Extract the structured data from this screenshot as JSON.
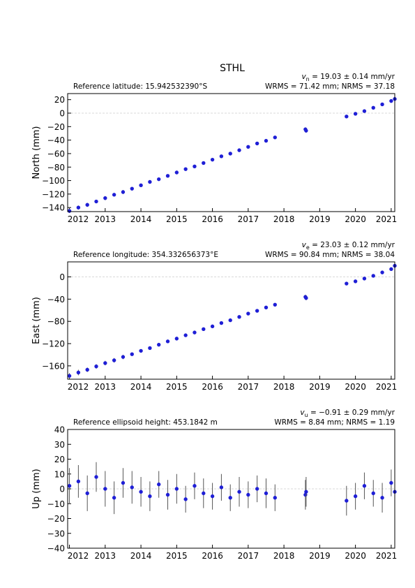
{
  "chart_data": [
    {
      "type": "scatter",
      "title": "STHL",
      "rate_symbol": "v",
      "rate_subscript": "n",
      "rate_text": " = 19.03 ± 0.14 mm/yr",
      "reference": "Reference latitude: 15.942532390°S",
      "stats": "WRMS = 71.42 mm; NRMS = 37.18",
      "y_label": "North (mm)",
      "xlim": [
        2011.95,
        2021.1
      ],
      "xticks": [
        2012,
        2013,
        2014,
        2015,
        2016,
        2017,
        2018,
        2019,
        2020,
        2021
      ],
      "ylim": [
        -146,
        29
      ],
      "yticks": [
        20,
        0,
        {
          "value": -20,
          "label": "−20"
        },
        {
          "value": -40,
          "label": "−40"
        },
        {
          "value": -60,
          "label": "−60"
        },
        {
          "value": -80,
          "label": "−80"
        },
        {
          "value": -100,
          "label": "−100"
        },
        {
          "value": -120,
          "label": "−120"
        },
        {
          "value": -140,
          "label": "−140"
        }
      ],
      "zero_line": true,
      "color": "#1f1fd6",
      "error_color": "#555555",
      "x": [
        2012.0,
        2012.25,
        2012.5,
        2012.75,
        2013.0,
        2013.25,
        2013.5,
        2013.75,
        2014.0,
        2014.25,
        2014.5,
        2014.75,
        2015.0,
        2015.25,
        2015.5,
        2015.75,
        2016.0,
        2016.25,
        2016.5,
        2016.75,
        2017.0,
        2017.25,
        2017.5,
        2017.75,
        2018.6,
        2018.62,
        2019.75,
        2020.0,
        2020.25,
        2020.5,
        2020.75,
        2021.0,
        2021.1
      ],
      "values": [
        -145,
        -140,
        -136,
        -131,
        -126,
        -121,
        -117,
        -112,
        -107,
        -102,
        -98,
        -93,
        -88,
        -83,
        -79,
        -74,
        -69,
        -64,
        -60,
        -55,
        -50,
        -45,
        -41,
        -36,
        -24,
        -26,
        -5,
        -1,
        3,
        8,
        13,
        18,
        21
      ],
      "errors": [
        3,
        3,
        3,
        2,
        3,
        2,
        3,
        2,
        2,
        2,
        2,
        2,
        2,
        2,
        2,
        2,
        2,
        2,
        2,
        2,
        2,
        2,
        2,
        2,
        3,
        3,
        2,
        2,
        2,
        2,
        2,
        2,
        2
      ]
    },
    {
      "type": "scatter",
      "rate_symbol": "v",
      "rate_subscript": "e",
      "rate_text": " = 23.03 ± 0.12 mm/yr",
      "reference": "Reference longitude: 354.332656373°E",
      "stats": "WRMS = 90.84 mm; NRMS = 38.04",
      "y_label": "East (mm)",
      "xlim": [
        2011.95,
        2021.1
      ],
      "xticks": [
        2012,
        2013,
        2014,
        2015,
        2016,
        2017,
        2018,
        2019,
        2020,
        2021
      ],
      "ylim": [
        -184,
        27
      ],
      "yticks": [
        0,
        {
          "value": -40,
          "label": "−40"
        },
        {
          "value": -80,
          "label": "−80"
        },
        {
          "value": -120,
          "label": "−120"
        },
        {
          "value": -160,
          "label": "−160"
        }
      ],
      "zero_line": true,
      "color": "#1f1fd6",
      "error_color": "#555555",
      "x": [
        2012.0,
        2012.25,
        2012.5,
        2012.75,
        2013.0,
        2013.25,
        2013.5,
        2013.75,
        2014.0,
        2014.25,
        2014.5,
        2014.75,
        2015.0,
        2015.25,
        2015.5,
        2015.75,
        2016.0,
        2016.25,
        2016.5,
        2016.75,
        2017.0,
        2017.25,
        2017.5,
        2017.75,
        2018.6,
        2018.62,
        2019.75,
        2020.0,
        2020.25,
        2020.5,
        2020.75,
        2021.0,
        2021.1
      ],
      "values": [
        -178,
        -172,
        -167,
        -161,
        -155,
        -150,
        -144,
        -139,
        -133,
        -128,
        -122,
        -116,
        -111,
        -105,
        -100,
        -94,
        -89,
        -83,
        -78,
        -72,
        -66,
        -61,
        -55,
        -50,
        -36,
        -38,
        -12,
        -8,
        -3,
        2,
        8,
        14,
        20
      ],
      "errors": [
        5,
        5,
        4,
        4,
        4,
        4,
        4,
        3,
        3,
        3,
        3,
        3,
        3,
        3,
        3,
        3,
        3,
        3,
        3,
        3,
        3,
        3,
        3,
        3,
        4,
        4,
        3,
        3,
        3,
        3,
        3,
        3,
        3
      ]
    },
    {
      "type": "scatter",
      "rate_symbol": "v",
      "rate_subscript": "u",
      "rate_text": " = −0.91 ± 0.29 mm/yr",
      "reference": "Reference ellipsoid height: 453.1842 m",
      "stats": "WRMS = 8.84 mm; NRMS = 1.19",
      "y_label": "Up (mm)",
      "xlim": [
        2011.95,
        2021.1
      ],
      "xticks": [
        2012,
        2013,
        2014,
        2015,
        2016,
        2017,
        2018,
        2019,
        2020,
        2021
      ],
      "ylim": [
        -40,
        40
      ],
      "yticks": [
        40,
        30,
        20,
        10,
        0,
        {
          "value": -10,
          "label": "−10"
        },
        {
          "value": -20,
          "label": "−20"
        },
        {
          "value": -30,
          "label": "−30"
        },
        {
          "value": -40,
          "label": "−40"
        }
      ],
      "zero_line": true,
      "color": "#1f1fd6",
      "error_color": "#555555",
      "x": [
        2012.0,
        2012.25,
        2012.5,
        2012.75,
        2013.0,
        2013.25,
        2013.5,
        2013.75,
        2014.0,
        2014.25,
        2014.5,
        2014.75,
        2015.0,
        2015.25,
        2015.5,
        2015.75,
        2016.0,
        2016.25,
        2016.5,
        2016.75,
        2017.0,
        2017.25,
        2017.5,
        2017.75,
        2018.6,
        2018.62,
        2019.75,
        2020.0,
        2020.25,
        2020.5,
        2020.75,
        2021.0,
        2021.1
      ],
      "values": [
        2,
        5,
        -3,
        8,
        0,
        -6,
        4,
        1,
        -2,
        -5,
        3,
        -4,
        0,
        -7,
        2,
        -3,
        -5,
        1,
        -6,
        -2,
        -4,
        0,
        -3,
        -6,
        -4,
        -2,
        -8,
        -5,
        2,
        -3,
        -6,
        4,
        -2
      ],
      "errors": [
        12,
        11,
        12,
        10,
        12,
        11,
        10,
        11,
        10,
        10,
        9,
        10,
        10,
        9,
        9,
        10,
        9,
        9,
        9,
        10,
        9,
        9,
        10,
        9,
        10,
        10,
        10,
        9,
        9,
        9,
        10,
        9,
        10
      ]
    }
  ]
}
